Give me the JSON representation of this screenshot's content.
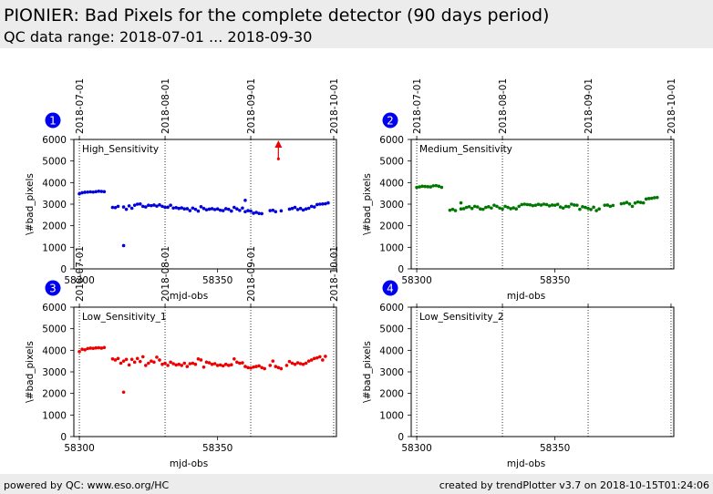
{
  "header": {
    "title": "PIONIER: Bad Pixels for the complete detector (90 days period)",
    "subtitle": "QC data range: 2018-07-01 ... 2018-09-30"
  },
  "footer": {
    "left": "powered by QC: www.eso.org/HC",
    "right": "created by trendPlotter v3.7 on 2018-10-15T01:24:06"
  },
  "colors": {
    "header_bg": "#ececec",
    "badge": "#0000ee"
  },
  "chart_data": [
    {
      "type": "scatter",
      "badge": "1",
      "title": "High_Sensitivity",
      "xlabel": "mjd-obs",
      "ylabel": "\\#bad_pixels",
      "xlim": [
        58298,
        58393
      ],
      "ylim": [
        0,
        6000
      ],
      "xticks": [
        58300,
        58350
      ],
      "yticks": [
        0,
        1000,
        2000,
        3000,
        4000,
        5000,
        6000
      ],
      "date_marks": [
        {
          "mjd": 58300,
          "label": "2018-07-01"
        },
        {
          "mjd": 58331,
          "label": "2018-08-01"
        },
        {
          "mjd": 58362,
          "label": "2018-09-01"
        },
        {
          "mjd": 58392,
          "label": "2018-10-01"
        }
      ],
      "color": "#0000dd",
      "arrow": {
        "x": 58372,
        "y_from": 5100,
        "y_to": 6000,
        "color": "#ee0000"
      },
      "points": [
        [
          58300,
          3480
        ],
        [
          58301,
          3530
        ],
        [
          58302,
          3550
        ],
        [
          58303,
          3560
        ],
        [
          58304,
          3570
        ],
        [
          58305,
          3560
        ],
        [
          58306,
          3580
        ],
        [
          58307,
          3600
        ],
        [
          58308,
          3590
        ],
        [
          58309,
          3580
        ],
        [
          58312,
          2850
        ],
        [
          58313,
          2840
        ],
        [
          58314,
          2900
        ],
        [
          58316,
          1080
        ],
        [
          58316,
          2870
        ],
        [
          58317,
          2760
        ],
        [
          58318,
          2920
        ],
        [
          58319,
          2810
        ],
        [
          58320,
          2950
        ],
        [
          58321,
          3000
        ],
        [
          58322,
          3010
        ],
        [
          58323,
          2900
        ],
        [
          58324,
          2870
        ],
        [
          58325,
          2950
        ],
        [
          58326,
          2930
        ],
        [
          58327,
          2960
        ],
        [
          58328,
          2910
        ],
        [
          58329,
          2970
        ],
        [
          58330,
          2900
        ],
        [
          58331,
          2850
        ],
        [
          58332,
          2860
        ],
        [
          58333,
          2950
        ],
        [
          58334,
          2820
        ],
        [
          58335,
          2840
        ],
        [
          58336,
          2800
        ],
        [
          58337,
          2830
        ],
        [
          58338,
          2780
        ],
        [
          58339,
          2790
        ],
        [
          58340,
          2700
        ],
        [
          58341,
          2820
        ],
        [
          58342,
          2760
        ],
        [
          58343,
          2680
        ],
        [
          58344,
          2880
        ],
        [
          58345,
          2800
        ],
        [
          58346,
          2740
        ],
        [
          58347,
          2770
        ],
        [
          58348,
          2790
        ],
        [
          58349,
          2750
        ],
        [
          58350,
          2780
        ],
        [
          58351,
          2720
        ],
        [
          58352,
          2700
        ],
        [
          58353,
          2790
        ],
        [
          58354,
          2760
        ],
        [
          58355,
          2680
        ],
        [
          58356,
          2850
        ],
        [
          58357,
          2780
        ],
        [
          58358,
          2710
        ],
        [
          58359,
          2820
        ],
        [
          58360,
          3180
        ],
        [
          58360,
          2650
        ],
        [
          58361,
          2700
        ],
        [
          58362,
          2680
        ],
        [
          58363,
          2580
        ],
        [
          58364,
          2620
        ],
        [
          58365,
          2570
        ],
        [
          58366,
          2560
        ],
        [
          58369,
          2700
        ],
        [
          58370,
          2720
        ],
        [
          58371,
          2650
        ],
        [
          58373,
          2690
        ],
        [
          58376,
          2770
        ],
        [
          58377,
          2800
        ],
        [
          58378,
          2850
        ],
        [
          58379,
          2750
        ],
        [
          58380,
          2800
        ],
        [
          58381,
          2730
        ],
        [
          58382,
          2780
        ],
        [
          58383,
          2810
        ],
        [
          58384,
          2900
        ],
        [
          58385,
          2870
        ],
        [
          58386,
          2980
        ],
        [
          58387,
          3000
        ],
        [
          58388,
          3010
        ],
        [
          58389,
          3020
        ],
        [
          58390,
          3060
        ]
      ]
    },
    {
      "type": "scatter",
      "badge": "2",
      "title": "Medium_Sensitivity",
      "xlabel": "mjd-obs",
      "ylabel": "\\#bad_pixels",
      "xlim": [
        58298,
        58393
      ],
      "ylim": [
        0,
        6000
      ],
      "xticks": [
        58300,
        58350
      ],
      "yticks": [
        0,
        1000,
        2000,
        3000,
        4000,
        5000,
        6000
      ],
      "date_marks": [
        {
          "mjd": 58300,
          "label": "2018-07-01"
        },
        {
          "mjd": 58331,
          "label": "2018-08-01"
        },
        {
          "mjd": 58362,
          "label": "2018-09-01"
        },
        {
          "mjd": 58392,
          "label": "2018-10-01"
        }
      ],
      "color": "#007700",
      "points": [
        [
          58300,
          3780
        ],
        [
          58301,
          3800
        ],
        [
          58302,
          3830
        ],
        [
          58303,
          3820
        ],
        [
          58304,
          3810
        ],
        [
          58305,
          3800
        ],
        [
          58306,
          3850
        ],
        [
          58307,
          3860
        ],
        [
          58308,
          3830
        ],
        [
          58309,
          3780
        ],
        [
          58312,
          2720
        ],
        [
          58313,
          2760
        ],
        [
          58314,
          2700
        ],
        [
          58316,
          3060
        ],
        [
          58316,
          2780
        ],
        [
          58317,
          2790
        ],
        [
          58318,
          2850
        ],
        [
          58319,
          2880
        ],
        [
          58320,
          2800
        ],
        [
          58321,
          2900
        ],
        [
          58322,
          2870
        ],
        [
          58323,
          2780
        ],
        [
          58324,
          2760
        ],
        [
          58325,
          2850
        ],
        [
          58326,
          2880
        ],
        [
          58327,
          2820
        ],
        [
          58328,
          2950
        ],
        [
          58329,
          2900
        ],
        [
          58330,
          2820
        ],
        [
          58331,
          2780
        ],
        [
          58332,
          2900
        ],
        [
          58333,
          2850
        ],
        [
          58334,
          2790
        ],
        [
          58335,
          2830
        ],
        [
          58336,
          2780
        ],
        [
          58337,
          2900
        ],
        [
          58338,
          2980
        ],
        [
          58339,
          3000
        ],
        [
          58340,
          2980
        ],
        [
          58341,
          2970
        ],
        [
          58342,
          2930
        ],
        [
          58343,
          2950
        ],
        [
          58344,
          2990
        ],
        [
          58345,
          2960
        ],
        [
          58346,
          3000
        ],
        [
          58347,
          2980
        ],
        [
          58348,
          2920
        ],
        [
          58349,
          2960
        ],
        [
          58350,
          2950
        ],
        [
          58351,
          2990
        ],
        [
          58352,
          2870
        ],
        [
          58353,
          2820
        ],
        [
          58354,
          2900
        ],
        [
          58355,
          2880
        ],
        [
          58356,
          3000
        ],
        [
          58357,
          2960
        ],
        [
          58358,
          2950
        ],
        [
          58359,
          2760
        ],
        [
          58360,
          2880
        ],
        [
          58361,
          2850
        ],
        [
          58362,
          2800
        ],
        [
          58363,
          2750
        ],
        [
          58364,
          2860
        ],
        [
          58365,
          2700
        ],
        [
          58366,
          2780
        ],
        [
          58368,
          2950
        ],
        [
          58369,
          2960
        ],
        [
          58370,
          2900
        ],
        [
          58371,
          2940
        ],
        [
          58374,
          3020
        ],
        [
          58375,
          3040
        ],
        [
          58376,
          3080
        ],
        [
          58377,
          3010
        ],
        [
          58378,
          2900
        ],
        [
          58379,
          3050
        ],
        [
          58380,
          3100
        ],
        [
          58381,
          3080
        ],
        [
          58382,
          3060
        ],
        [
          58383,
          3240
        ],
        [
          58384,
          3260
        ],
        [
          58385,
          3270
        ],
        [
          58386,
          3300
        ],
        [
          58387,
          3310
        ]
      ]
    },
    {
      "type": "scatter",
      "badge": "3",
      "title": "Low_Sensitivity_1",
      "xlabel": "mjd-obs",
      "ylabel": "\\#bad_pixels",
      "xlim": [
        58298,
        58393
      ],
      "ylim": [
        0,
        6000
      ],
      "xticks": [
        58300,
        58350
      ],
      "yticks": [
        0,
        1000,
        2000,
        3000,
        4000,
        5000,
        6000
      ],
      "date_marks": [
        {
          "mjd": 58300,
          "label": "2018-07-01"
        },
        {
          "mjd": 58331,
          "label": "2018-08-01"
        },
        {
          "mjd": 58362,
          "label": "2018-09-01"
        },
        {
          "mjd": 58392,
          "label": "2018-10-01"
        }
      ],
      "color": "#ee0000",
      "points": [
        [
          58300,
          3940
        ],
        [
          58301,
          4050
        ],
        [
          58302,
          4020
        ],
        [
          58303,
          4080
        ],
        [
          58304,
          4100
        ],
        [
          58305,
          4090
        ],
        [
          58306,
          4110
        ],
        [
          58307,
          4120
        ],
        [
          58308,
          4100
        ],
        [
          58309,
          4130
        ],
        [
          58312,
          3600
        ],
        [
          58313,
          3550
        ],
        [
          58314,
          3620
        ],
        [
          58315,
          3400
        ],
        [
          58316,
          2060
        ],
        [
          58316,
          3500
        ],
        [
          58317,
          3580
        ],
        [
          58318,
          3320
        ],
        [
          58319,
          3580
        ],
        [
          58320,
          3450
        ],
        [
          58321,
          3620
        ],
        [
          58322,
          3480
        ],
        [
          58323,
          3700
        ],
        [
          58324,
          3300
        ],
        [
          58325,
          3400
        ],
        [
          58326,
          3500
        ],
        [
          58327,
          3450
        ],
        [
          58328,
          3680
        ],
        [
          58329,
          3550
        ],
        [
          58330,
          3350
        ],
        [
          58331,
          3400
        ],
        [
          58332,
          3300
        ],
        [
          58333,
          3450
        ],
        [
          58334,
          3380
        ],
        [
          58335,
          3320
        ],
        [
          58336,
          3350
        ],
        [
          58337,
          3300
        ],
        [
          58338,
          3400
        ],
        [
          58339,
          3250
        ],
        [
          58340,
          3380
        ],
        [
          58341,
          3400
        ],
        [
          58342,
          3350
        ],
        [
          58343,
          3600
        ],
        [
          58344,
          3550
        ],
        [
          58345,
          3220
        ],
        [
          58346,
          3450
        ],
        [
          58347,
          3420
        ],
        [
          58348,
          3350
        ],
        [
          58349,
          3380
        ],
        [
          58350,
          3300
        ],
        [
          58351,
          3320
        ],
        [
          58352,
          3280
        ],
        [
          58353,
          3350
        ],
        [
          58354,
          3300
        ],
        [
          58355,
          3330
        ],
        [
          58356,
          3600
        ],
        [
          58357,
          3450
        ],
        [
          58358,
          3400
        ],
        [
          58359,
          3420
        ],
        [
          58360,
          3250
        ],
        [
          58361,
          3200
        ],
        [
          58362,
          3180
        ],
        [
          58363,
          3220
        ],
        [
          58364,
          3250
        ],
        [
          58365,
          3280
        ],
        [
          58366,
          3200
        ],
        [
          58367,
          3150
        ],
        [
          58369,
          3300
        ],
        [
          58370,
          3500
        ],
        [
          58371,
          3250
        ],
        [
          58372,
          3200
        ],
        [
          58373,
          3150
        ],
        [
          58375,
          3300
        ],
        [
          58376,
          3480
        ],
        [
          58377,
          3400
        ],
        [
          58378,
          3350
        ],
        [
          58379,
          3420
        ],
        [
          58380,
          3380
        ],
        [
          58381,
          3350
        ],
        [
          58382,
          3400
        ],
        [
          58383,
          3500
        ],
        [
          58384,
          3550
        ],
        [
          58385,
          3620
        ],
        [
          58386,
          3650
        ],
        [
          58387,
          3700
        ],
        [
          58388,
          3550
        ],
        [
          58389,
          3720
        ]
      ]
    },
    {
      "type": "scatter",
      "badge": "4",
      "title": "Low_Sensitivity_2",
      "xlabel": "mjd-obs",
      "ylabel": "\\#bad_pixels",
      "xlim": [
        58298,
        58393
      ],
      "ylim": [
        0,
        6000
      ],
      "xticks": [
        58300,
        58350
      ],
      "yticks": [
        0,
        1000,
        2000,
        3000,
        4000,
        5000,
        6000
      ],
      "date_marks": [
        {
          "mjd": 58300,
          "label": ""
        },
        {
          "mjd": 58331,
          "label": ""
        },
        {
          "mjd": 58362,
          "label": ""
        },
        {
          "mjd": 58392,
          "label": ""
        }
      ],
      "color": "#000000",
      "points": []
    }
  ]
}
